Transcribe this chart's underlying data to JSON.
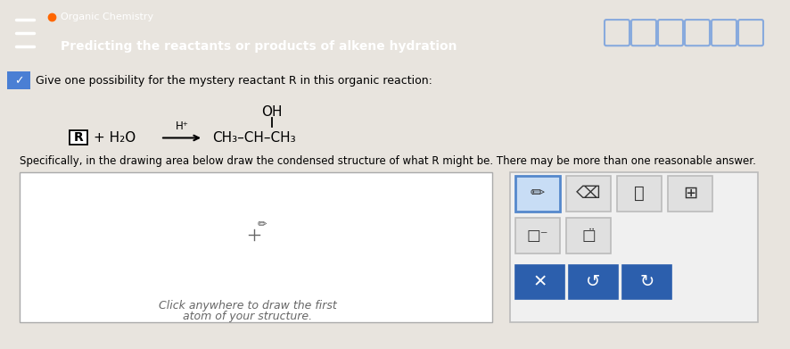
{
  "bg_top_color": "#2255aa",
  "bg_main_color": "#e8e4de",
  "header_title1": "Organic Chemistry",
  "header_title2": "Predicting the reactants or products of alkene hydration",
  "question_text": "Give one possibility for the mystery reactant R in this organic reaction:",
  "instruction_text": "Specifically, in the drawing area below draw the condensed structure of what R might be. There may be more than one reasonable answer.",
  "draw_area_text1": "Click anywhere to draw the first",
  "draw_area_text2": "atom of your structure.",
  "blue_btn_color": "#2c5fad",
  "light_btn_color": "#e0e0e0",
  "toolbar_bg": "#f0f0f0",
  "pencil_highlight": "#c8ddf5",
  "header_rect_color": "#6688cc",
  "chevron_bg": "#4a7fd4"
}
